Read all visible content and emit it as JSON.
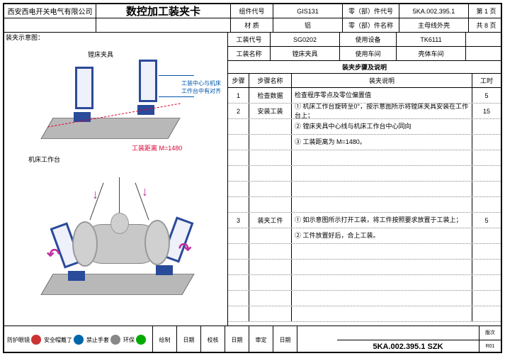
{
  "header": {
    "company": "西安西电开关电气有限公司",
    "doc_title": "数控加工装夹卡",
    "row1": {
      "l1": "组件代号",
      "v1": "GIS131",
      "l2": "零（部）件代号",
      "v2": "5KA.002.395.1",
      "l3": "第 1 页"
    },
    "row2": {
      "l1": "材 质",
      "v1": "铝",
      "l2": "零（部）件名称",
      "v2": "主母线外壳",
      "l3": "共 8 页"
    }
  },
  "gx": {
    "l1": "工装代号",
    "v1": "SG0202",
    "l2": "使用设备",
    "v2": "TK6111",
    "l3": "工装名称",
    "v3": "镗床夹具",
    "l4": "使用车间",
    "v4": "壳体车间"
  },
  "left": {
    "title": "装夹示意图：",
    "label_fixture": "镗床夹具",
    "label_centerline": "工装中心与机床工作台中有对齐",
    "label_table": "机床工作台",
    "label_distance": "工装距离 M=1480"
  },
  "steps": {
    "section_title": "装夹步骤及说明",
    "head": {
      "c1": "步骤",
      "c2": "步骤名称",
      "c3": "装夹说明",
      "c4": "工时"
    },
    "rows": [
      {
        "n": "1",
        "name": "检查数据",
        "desc": "检查程序零点及零位偏置值",
        "time": "5"
      },
      {
        "n": "2",
        "name": "安装工装",
        "desc": "① 机床工作台旋转至0°，按示意图所示将镗床夹具安装在工作台上；",
        "time": "15"
      },
      {
        "n": "",
        "name": "",
        "desc": "② 镗床夹具中心线与机床工作台中心同向",
        "time": ""
      },
      {
        "n": "",
        "name": "",
        "desc": "③ 工装距离为 M=1480。",
        "time": ""
      },
      {
        "n": "",
        "name": "",
        "desc": "",
        "time": ""
      },
      {
        "n": "",
        "name": "",
        "desc": "",
        "time": ""
      },
      {
        "n": "",
        "name": "",
        "desc": "",
        "time": ""
      },
      {
        "n": "",
        "name": "",
        "desc": "",
        "time": ""
      },
      {
        "n": "3",
        "name": "装夹工件",
        "desc": "① 如示意图所示打开工装，将工件按照要求放置于工装上；",
        "time": "5"
      },
      {
        "n": "",
        "name": "",
        "desc": "② 工件放置好后，合上工装。",
        "time": ""
      },
      {
        "n": "",
        "name": "",
        "desc": "",
        "time": ""
      },
      {
        "n": "",
        "name": "",
        "desc": "",
        "time": ""
      },
      {
        "n": "",
        "name": "",
        "desc": "",
        "time": ""
      },
      {
        "n": "",
        "name": "",
        "desc": "",
        "time": ""
      },
      {
        "n": "",
        "name": "",
        "desc": "",
        "time": ""
      }
    ]
  },
  "footer": {
    "badges": [
      {
        "label": "防护眼镜",
        "color": "#c33"
      },
      {
        "label": "安全帽戴了",
        "color": "#06a"
      },
      {
        "label": "禁止手套",
        "color": "#888"
      },
      {
        "label": "环保",
        "color": "#0a0"
      }
    ],
    "cols": [
      "绘制",
      "日期",
      "校核",
      "日期",
      "审定",
      "日期"
    ],
    "code": "5KA.002.395.1  SZK",
    "rev": "版次",
    "rev_v": "R01"
  },
  "colors": {
    "border": "#000000",
    "fixture_blue": "#2a4a9a",
    "dash_red": "#d03",
    "arrow_magenta": "#c030a0",
    "platform_gray": "#b8b8b8"
  }
}
